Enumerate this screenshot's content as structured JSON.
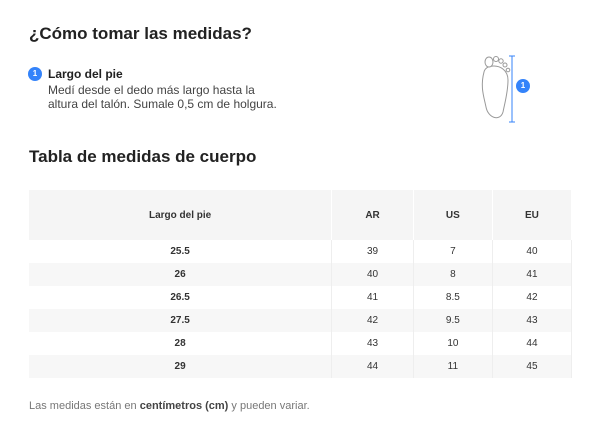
{
  "header": {
    "title": "¿Cómo tomar las medidas?"
  },
  "step": {
    "number": "1",
    "title": "Largo del pie",
    "description_lines": [
      "Medí desde el dedo más largo hasta la",
      "altura del talón. Sumale 0,5 cm de holgura."
    ]
  },
  "figure": {
    "badge": "1"
  },
  "section": {
    "title": "Tabla de medidas de cuerpo"
  },
  "table": {
    "columns": [
      "Largo del pie",
      "AR",
      "US",
      "EU"
    ],
    "rows": [
      [
        "25.5",
        "39",
        "7",
        "40"
      ],
      [
        "26",
        "40",
        "8",
        "41"
      ],
      [
        "26.5",
        "41",
        "8.5",
        "42"
      ],
      [
        "27.5",
        "42",
        "9.5",
        "43"
      ],
      [
        "28",
        "43",
        "10",
        "44"
      ],
      [
        "29",
        "44",
        "11",
        "45"
      ]
    ]
  },
  "footnote": {
    "before": "Las medidas están en",
    "bold": "centímetros (cm)",
    "after": "y pueden variar."
  }
}
